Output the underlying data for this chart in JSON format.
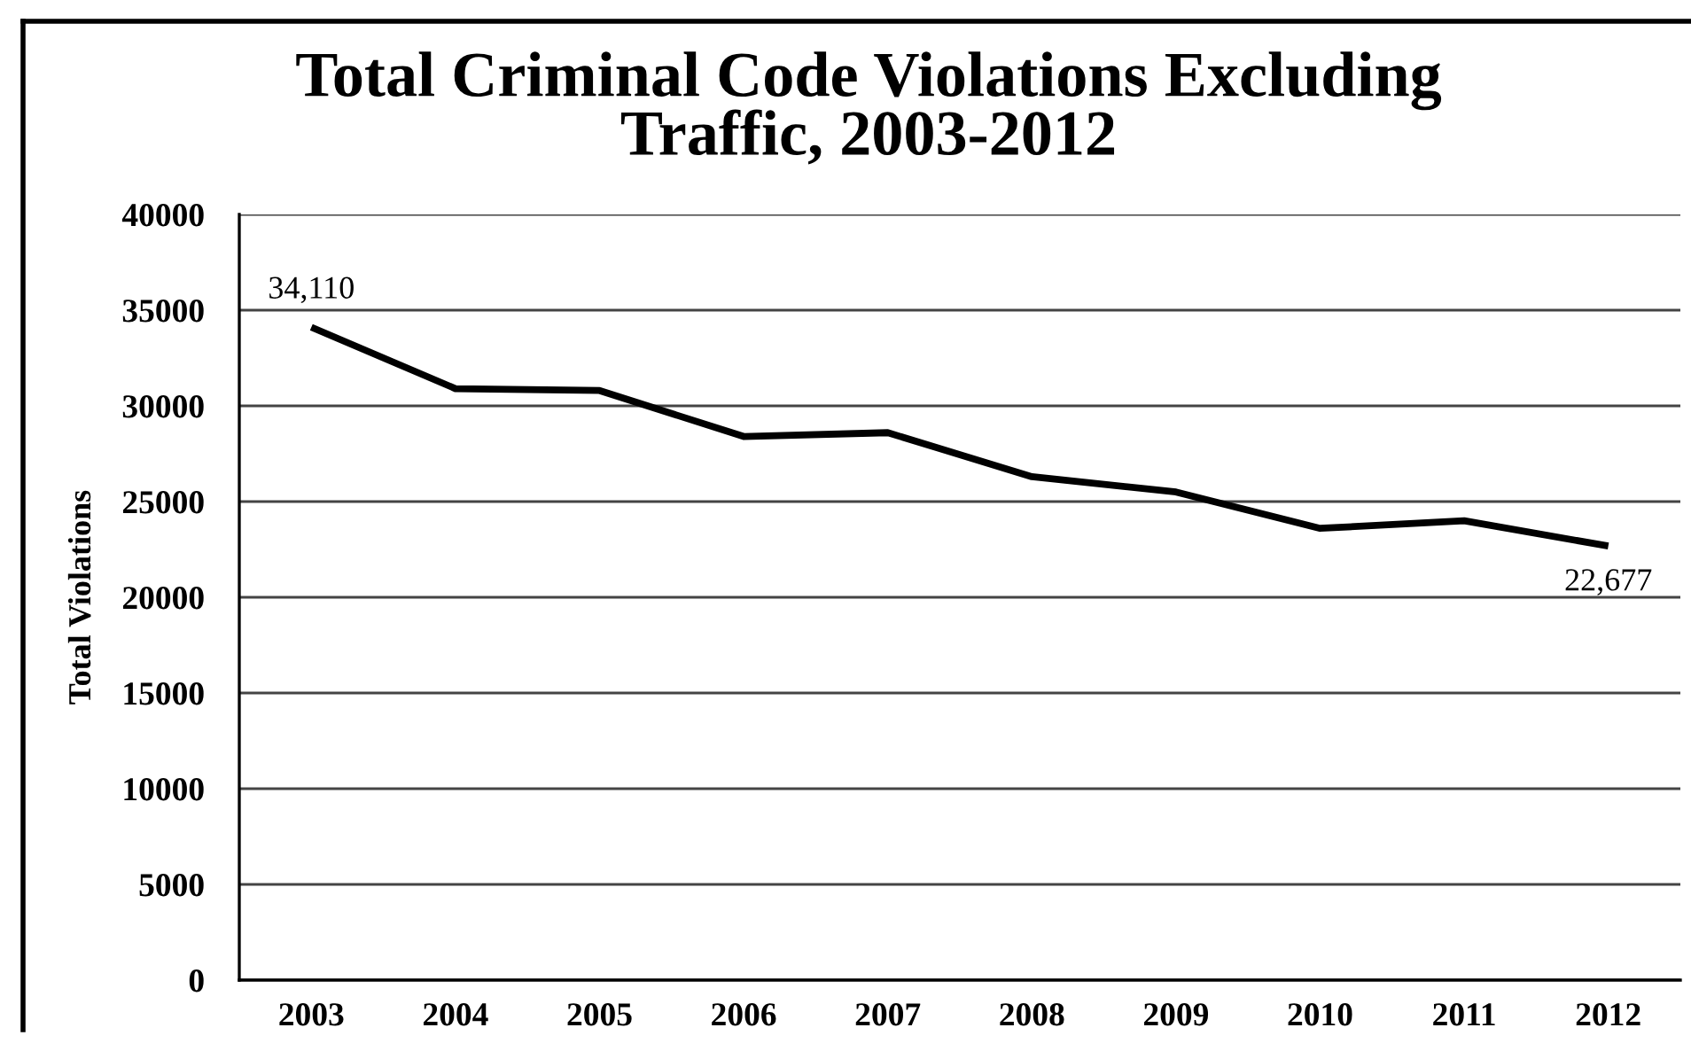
{
  "chart_data": {
    "type": "line",
    "title": "Total Criminal Code Violations Excluding\nTraffic, 2003-2012",
    "ylabel": "Total Violations",
    "categories": [
      "2003",
      "2004",
      "2005",
      "2006",
      "2007",
      "2008",
      "2009",
      "2010",
      "2011",
      "2012"
    ],
    "series": [
      {
        "color": "#000000",
        "values": [
          34110,
          30900,
          30800,
          28400,
          28600,
          26300,
          25500,
          23600,
          24000,
          22677
        ],
        "value_labels": [
          "34,110",
          null,
          null,
          null,
          null,
          null,
          null,
          null,
          null,
          "22,677"
        ]
      }
    ],
    "ylim": [
      0,
      40000
    ],
    "yticks": [
      0,
      5000,
      10000,
      15000,
      20000,
      25000,
      30000,
      35000,
      40000
    ],
    "grid": "y"
  }
}
